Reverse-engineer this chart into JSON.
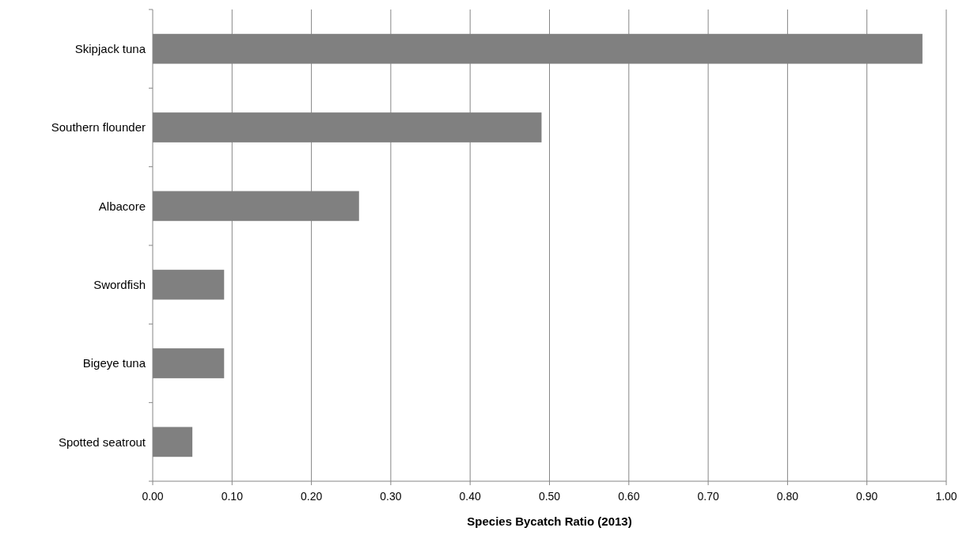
{
  "chart_data": {
    "type": "bar",
    "orientation": "horizontal",
    "xlabel": "Species Bycatch Ratio (2013)",
    "categories": [
      "Skipjack tuna",
      "Southern flounder",
      "Albacore",
      "Swordfish",
      "Bigeye tuna",
      "Spotted seatrout"
    ],
    "values": [
      0.97,
      0.49,
      0.26,
      0.09,
      0.09,
      0.05
    ],
    "color": "#808080",
    "xlim": [
      0,
      1
    ],
    "xticks": [
      {
        "value": 0,
        "label": "0.00"
      },
      {
        "value": 0.1,
        "label": "0.10"
      },
      {
        "value": 0.2,
        "label": "0.20"
      },
      {
        "value": 0.3,
        "label": "0.30"
      },
      {
        "value": 0.4,
        "label": "0.40"
      },
      {
        "value": 0.5,
        "label": "0.50"
      },
      {
        "value": 0.6,
        "label": "0.60"
      },
      {
        "value": 0.7,
        "label": "0.70"
      },
      {
        "value": 0.8,
        "label": "0.80"
      },
      {
        "value": 0.9,
        "label": "0.90"
      },
      {
        "value": 1,
        "label": "1.00"
      }
    ],
    "grid": "x"
  }
}
